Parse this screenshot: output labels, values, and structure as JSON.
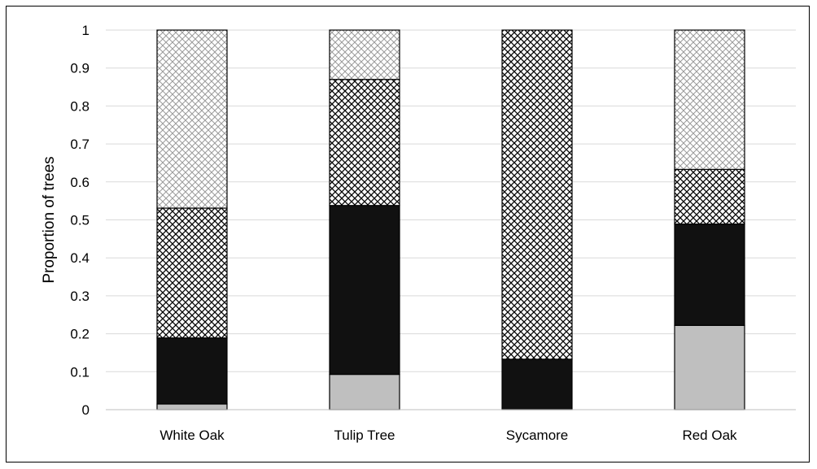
{
  "chart_data": {
    "type": "bar",
    "stacked": true,
    "title": "",
    "xlabel": "",
    "ylabel": "Proportion of trees",
    "ylim": [
      0,
      1
    ],
    "yticks": [
      "0",
      "0.1",
      "0.2",
      "0.3",
      "0.4",
      "0.5",
      "0.6",
      "0.7",
      "0.8",
      "0.9",
      "1"
    ],
    "grid": true,
    "legend": "none",
    "categories": [
      "White Oak",
      "Tulip Tree",
      "Sycamore",
      "Red Oak"
    ],
    "series": [
      {
        "fill": "#bfbfbf",
        "pattern": "solid-gray",
        "values": [
          0.015,
          0.093,
          0.0,
          0.222
        ]
      },
      {
        "fill": "#111111",
        "pattern": "solid-black",
        "values": [
          0.174,
          0.445,
          0.133,
          0.267
        ]
      },
      {
        "fill": "#000000",
        "pattern": "dense-crosshatch",
        "values": [
          0.342,
          0.332,
          0.867,
          0.144
        ]
      },
      {
        "fill": "#9a9a9a",
        "pattern": "light-crosshatch",
        "values": [
          0.469,
          0.13,
          0.0,
          0.367
        ]
      }
    ]
  }
}
